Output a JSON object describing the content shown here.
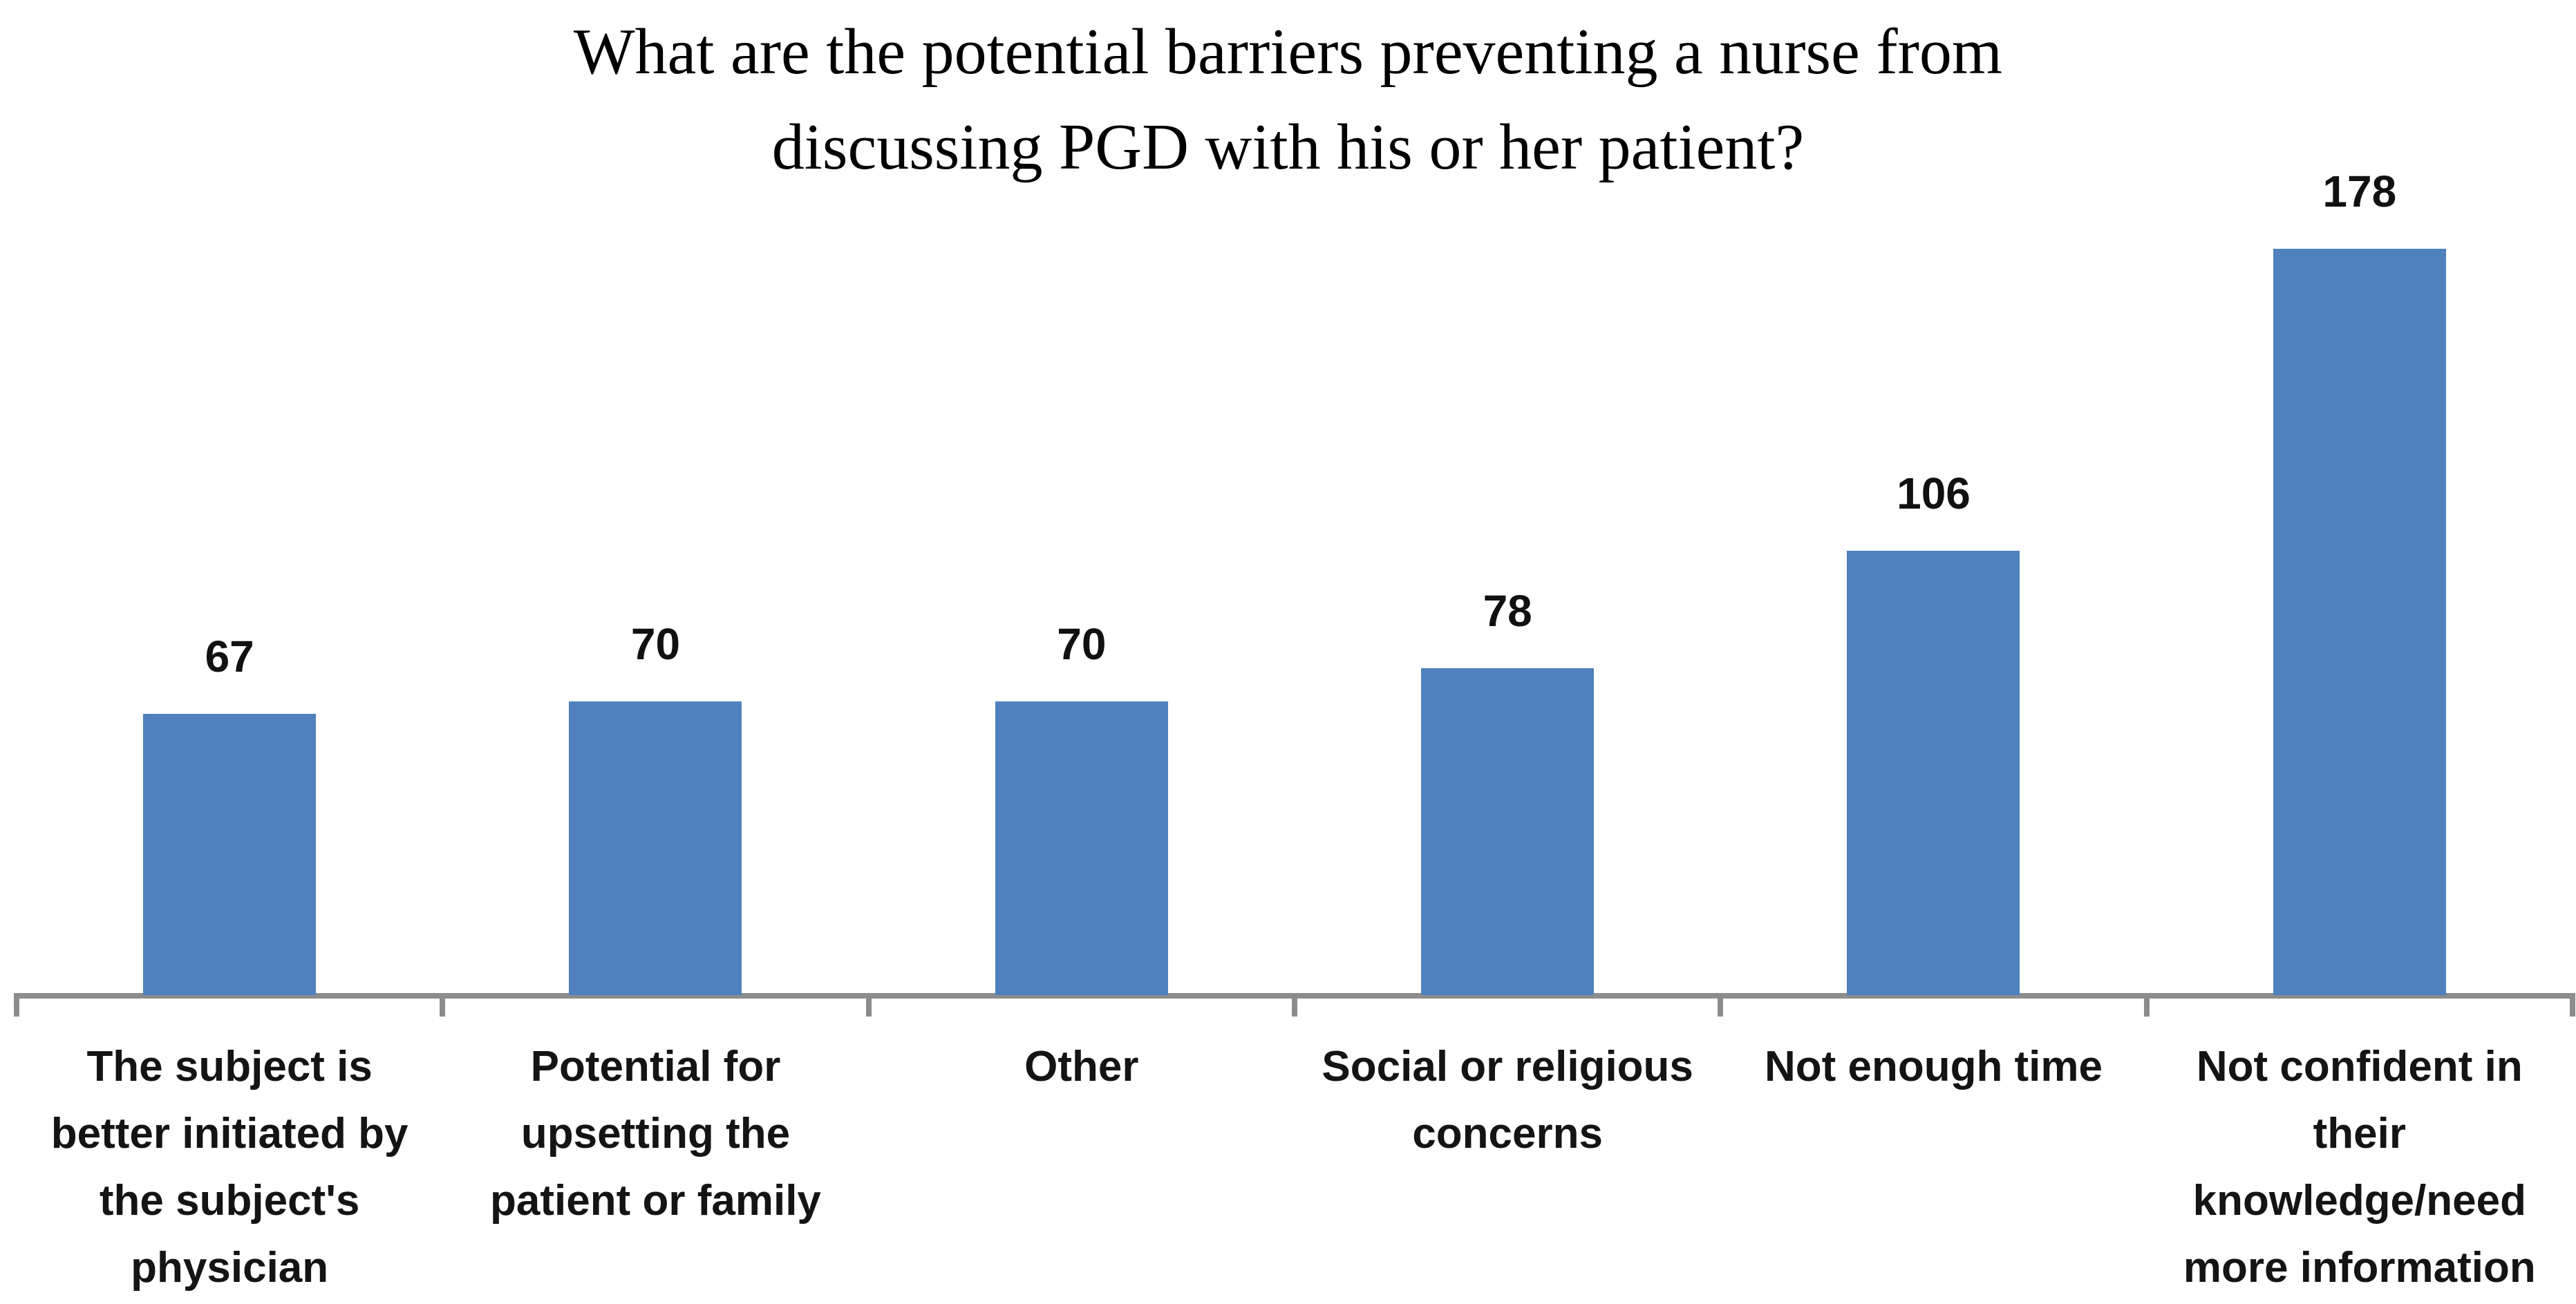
{
  "chart_data": {
    "type": "bar",
    "title": "What are the potential barriers preventing a nurse from discussing PGD with his or her patient?",
    "title_lines": [
      "What are the potential barriers preventing a nurse from",
      "discussing PGD with his or her patient?"
    ],
    "categories": [
      "The subject is better initiated by the subject's physician",
      "Potential for upsetting the patient or family",
      "Other",
      "Social or religious concerns",
      "Not enough time",
      "Not confident in their knowledge/need more information"
    ],
    "category_label_lines": [
      [
        "The subject is",
        "better initiated by",
        "the subject's",
        "physician"
      ],
      [
        "Potential for",
        "upsetting the",
        "patient or family"
      ],
      [
        "Other"
      ],
      [
        "Social or religious",
        "concerns"
      ],
      [
        "Not enough time"
      ],
      [
        "Not confident in",
        "their",
        "knowledge/need",
        "more information"
      ]
    ],
    "values": [
      67,
      70,
      70,
      78,
      106,
      178
    ],
    "data_labels": [
      "67",
      "70",
      "70",
      "78",
      "106",
      "178"
    ],
    "xlabel": "",
    "ylabel": "",
    "legend": "none",
    "grid": false,
    "axis": {
      "x_axis_visible": true,
      "y_axis_visible": false,
      "boundary_tick_count": 7
    },
    "colors": {
      "bar": "#4e81bd",
      "axis": "#8c8c8c",
      "title_text": "#000000",
      "label_text": "#141414",
      "background": "#ffffff"
    }
  }
}
